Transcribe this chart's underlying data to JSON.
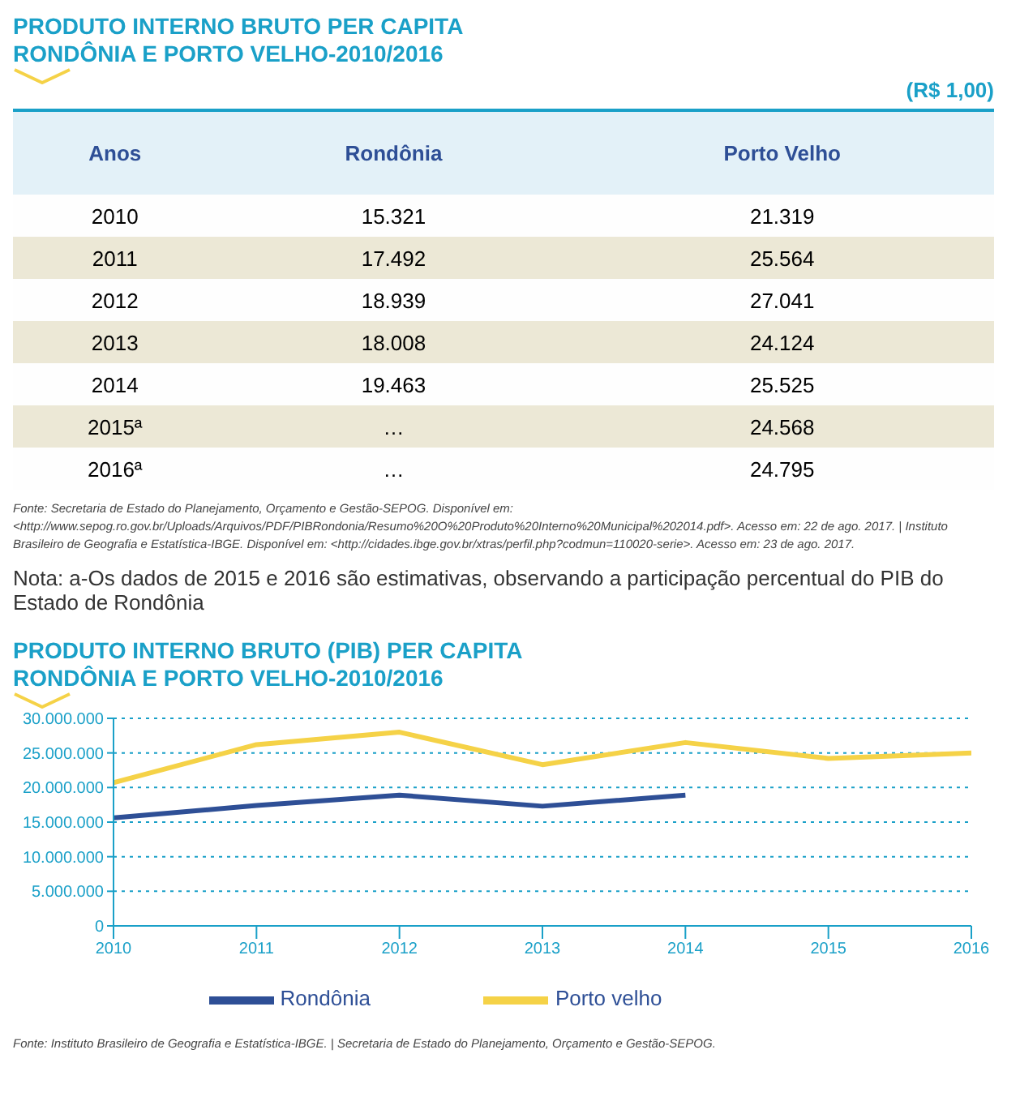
{
  "chart_data": [
    {
      "type": "heatmap",
      "title": "PRODUTO INTERNO BRUTO PER CAPITA",
      "subtitle": "RONDÔNIA E PORTO VELHO-2010/2016",
      "ylabel": "Anos",
      "categories": [
        "Rondônia",
        "Porto Velho"
      ],
      "y_categories": [
        "2010",
        "2011",
        "2012",
        "2013",
        "2014",
        "2015ª",
        "2016ª"
      ],
      "cells": [
        [
          15321,
          21319
        ],
        [
          17492,
          25564
        ],
        [
          18939,
          27041
        ],
        [
          18008,
          24124
        ],
        [
          19463,
          25525
        ],
        [
          null,
          24568
        ],
        [
          null,
          24795
        ]
      ],
      "cell_labels": [
        [
          "15.321",
          "21.319"
        ],
        [
          "17.492",
          "25.564"
        ],
        [
          "18.939",
          "27.041"
        ],
        [
          "18.008",
          "24.124"
        ],
        [
          "19.463",
          "25.525"
        ],
        [
          "…",
          "24.568"
        ],
        [
          "…",
          "24.795"
        ]
      ],
      "annotations": [
        "(R$ 1,00)",
        "Fonte: Secretaria de Estado do Planejamento, Orçamento e Gestão-SEPOG. Disponível em: <http://www.sepog.ro.gov.br/Uploads/Arquivos/PDF/PIBRondonia/Resumo%20O%20Produto%20Interno%20Municipal%202014.pdf>. Acesso em: 22 de ago. 2017.  |  Instituto Brasileiro de Geografia e Estatística-IBGE. Disponível em: <http://cidades.ibge.gov.br/xtras/perfil.php?codmun=110020-serie>. Acesso em: 23 de ago. 2017.",
        "Nota: a-Os dados de 2015 e 2016 são estimativas, observando a participação percentual do PIB do Estado de Rondônia"
      ]
    },
    {
      "type": "line",
      "title": "PRODUTO INTERNO BRUTO (PIB) PER CAPITA",
      "subtitle": "RONDÔNIA E PORTO VELHO-2010/2016",
      "x": [
        2010,
        2011,
        2012,
        2013,
        2014,
        2015,
        2016
      ],
      "xlim": [
        2010,
        2016
      ],
      "xticks": [
        2010,
        2011,
        2012,
        2013,
        2014,
        2015,
        2016
      ],
      "ylim": [
        0,
        30000000
      ],
      "yticks": [
        {
          "value": 0,
          "label": "0"
        },
        {
          "value": 5000000,
          "label": "5.000.000"
        },
        {
          "value": 10000000,
          "label": "10.000.000"
        },
        {
          "value": 15000000,
          "label": "15.000.000"
        },
        {
          "value": 20000000,
          "label": "20.000.000"
        },
        {
          "value": 25000000,
          "label": "25.000.000"
        },
        {
          "value": 30000000,
          "label": "30.000.000"
        }
      ],
      "grid": "y",
      "legend": "bottom",
      "marker": "none",
      "line_style": "solid",
      "series": [
        {
          "name": "Rondônia",
          "color": "#2e4f96",
          "values": [
            15600000,
            17400000,
            18900000,
            17300000,
            18900000,
            null,
            null
          ]
        },
        {
          "name": "Porto velho",
          "color": "#f5d247",
          "values": [
            20700000,
            26200000,
            28000000,
            23300000,
            26500000,
            24200000,
            25000000
          ]
        }
      ],
      "annotations": [
        "Fonte: Instituto Brasileiro de Geografia e Estatística-IBGE.  |  Secretaria de Estado do Planejamento, Orçamento e Gestão-SEPOG."
      ]
    }
  ]
}
